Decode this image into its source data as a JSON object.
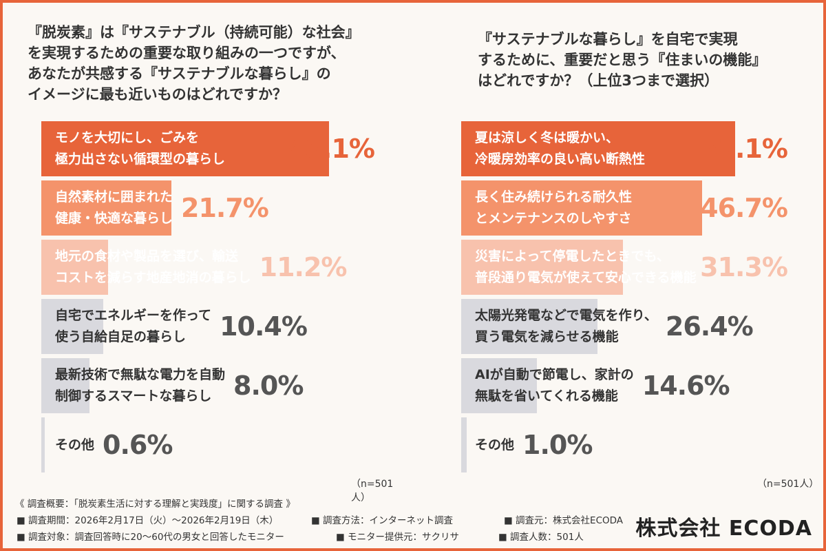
{
  "chart_data": [
    {
      "type": "bar",
      "title": "『脱炭素』は『サステナブル（持続可能）な社会』\nを実現するための重要な取り組みの一つですが、\nあなたが共感する『サステナブルな暮らし』の\nイメージに最も近いものはどれですか？",
      "categories": [
        "モノを大切にし、ごみを\n極力出さない循環型の暮らし",
        "自然素材に囲まれた\n健康・快適な暮らし",
        "地元の食材や製品を選び、輸送\nコストを減らす地産地消の暮らし",
        "自宅でエネルギーを作って\n使う自給自足の暮らし",
        "最新技術で無駄な電力を自動\n制御するスマートな暮らし",
        "その他"
      ],
      "values": [
        48.1,
        21.7,
        11.2,
        10.4,
        8.0,
        0.6
      ],
      "value_labels": [
        "48.1%",
        "21.7%",
        "11.2%",
        "10.4%",
        "8.0%",
        "0.6%"
      ],
      "colors": [
        "#e7643a",
        "#f4936b",
        "#f8c2ad",
        "#d9d9de",
        "#d9d9de",
        "#d9d9de"
      ],
      "text_colors": [
        "#ffffff",
        "#ffffff",
        "#ffffff",
        "#333333",
        "#333333",
        "#333333"
      ],
      "pct_colors": [
        "#e7643a",
        "#f4936b",
        "#f8c2ad",
        "#555555",
        "#555555",
        "#555555"
      ],
      "note": "（n=501人）"
    },
    {
      "type": "bar",
      "title": "『サステナブルな暮らし』を自宅で実現\nするために、重要だと思う『住まいの機能』\nはどれですか？（上位3つまで選択）",
      "categories": [
        "夏は涼しく冬は暖かい、\n冷暖房効率の良い高い断熱性",
        "長く住み続けられる耐久性\nとメンテナンスのしやすさ",
        "災害によって停電したときでも、\n普段通り電気が使えて安心できる機能",
        "太陽光発電などで電気を作り、\n買う電気を減らせる機能",
        "AIが自動で節電し、家計の\n無駄を省いてくれる機能",
        "その他"
      ],
      "values": [
        53.1,
        46.7,
        31.3,
        26.4,
        14.6,
        1.0
      ],
      "value_labels": [
        "53.1%",
        "46.7%",
        "31.3%",
        "26.4%",
        "14.6%",
        "1.0%"
      ],
      "colors": [
        "#e7643a",
        "#f4936b",
        "#f8c2ad",
        "#d9d9de",
        "#d9d9de",
        "#d9d9de"
      ],
      "text_colors": [
        "#ffffff",
        "#ffffff",
        "#ffffff",
        "#333333",
        "#333333",
        "#333333"
      ],
      "pct_colors": [
        "#e7643a",
        "#f4936b",
        "#f8c2ad",
        "#555555",
        "#555555",
        "#555555"
      ],
      "note": "（n=501人）"
    }
  ],
  "footer": {
    "title": "《 調査概要：「脱炭素生活に対する理解と実践度」に関する調査 》",
    "period": "■ 調査期間：2026年2月17日（火）〜2026年2月19日（木）",
    "method": "■ 調査方法：インターネット調査",
    "source": "■ 調査元：株式会社ECODA",
    "target": "■ 調査対象：調査回答時に20〜60代の男女と回答したモニター",
    "provider": "■ モニター提供元：サクリサ",
    "count": "■ 調査人数：501人",
    "company": "株式会社 ECODA"
  },
  "theme": {
    "accent": "#e7643a",
    "background": "#fbf8f4"
  }
}
